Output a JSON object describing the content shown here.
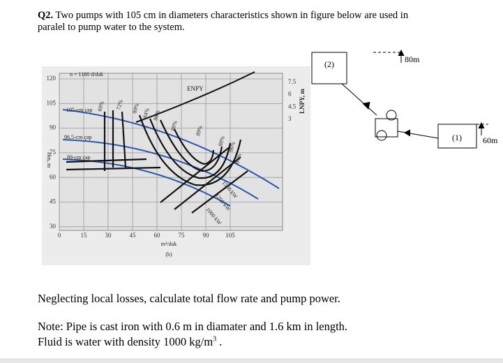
{
  "question": {
    "number": "Q2.",
    "line1": "Two pumps with 105 cm in diameters characteristics shown in figure below are used in",
    "line2": "paralel to pump water to the system."
  },
  "figure": {
    "speed": "n = 1160 d/dak",
    "head_axis_label": "Hm, m",
    "npsh_axis_label": "LNPY, m",
    "x_axis_label": "m³/dak",
    "caption": "(b)",
    "npsh_curve": "ENPY",
    "yticks": [
      120,
      105,
      90,
      75,
      60,
      45,
      30
    ],
    "xticks": [
      0,
      15,
      30,
      45,
      60,
      75,
      90,
      105
    ],
    "y2ticks": [
      7.5,
      6.0,
      4.5,
      3.0
    ],
    "diameters": [
      "105-cm çap",
      "96.5-cm çap",
      "89-cm çap"
    ],
    "efficiencies": [
      "60%",
      "72%",
      "80%",
      "84%",
      "86%",
      "88%",
      "89%",
      "88%",
      "86%",
      "84%"
    ],
    "powers": [
      "1500 kW",
      "1250 kW",
      "1000 kW"
    ]
  },
  "schematic": {
    "reservoir_2": "(2)",
    "elevation_2": "80m",
    "reservoir_1": "(1)",
    "elevation_1": "60m"
  },
  "task": "Neglecting local losses, calculate total flow rate and pump power.",
  "note": {
    "line1": "Note: Pipe is cast iron with  0.6 m in diamater and 1.6 km in length.",
    "line2": "Fluid is water with density 1000 kg/m",
    "line2_sup": "3",
    "line2_end": " ."
  }
}
